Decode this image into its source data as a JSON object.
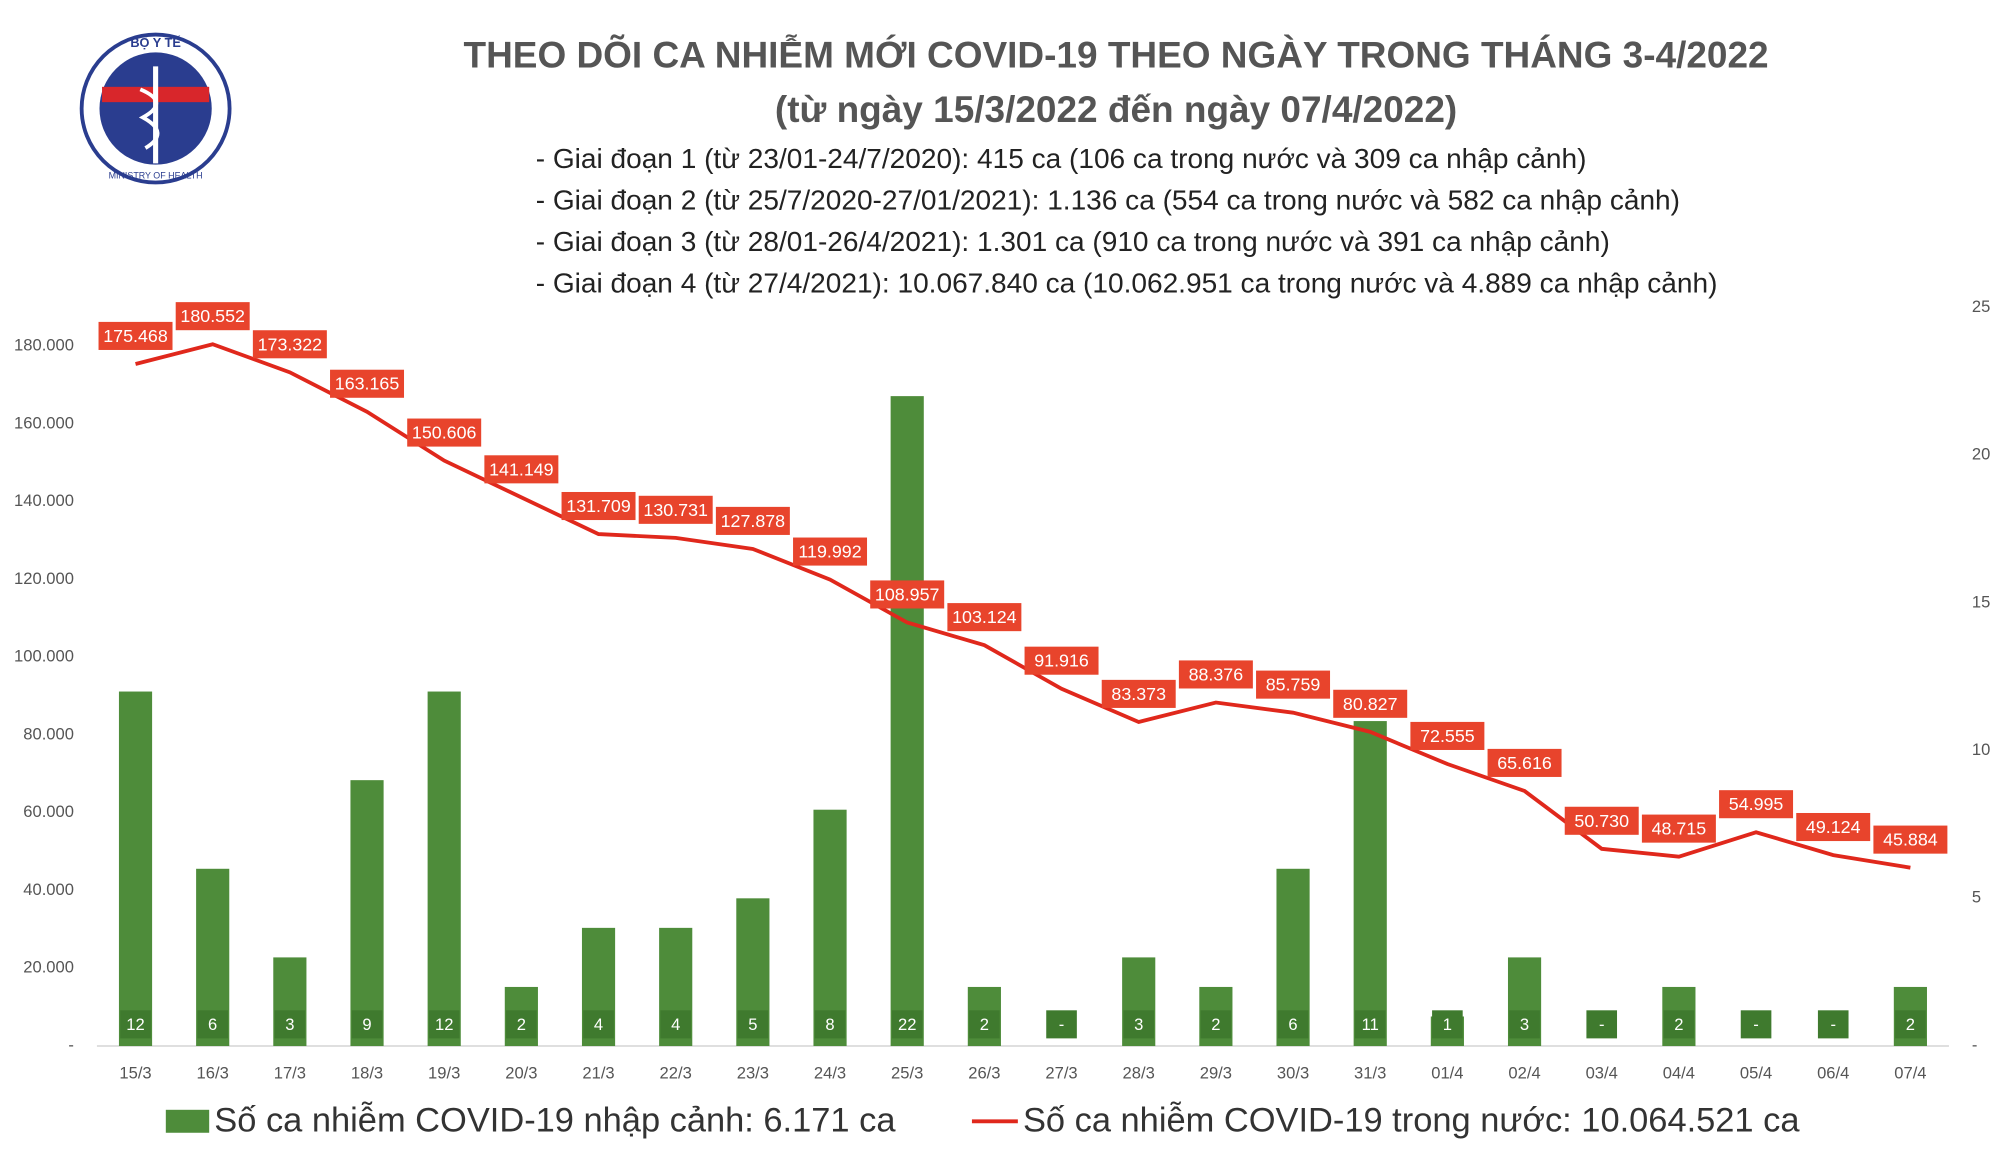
{
  "logo": {
    "top": "BỘ Y TẾ",
    "bottom": "MINISTRY OF HEALTH"
  },
  "chart_data": {
    "type": "combo",
    "title": "THEO DÕI CA NHIỄM MỚI COVID-19 THEO NGÀY TRONG THÁNG 3-4/2022",
    "subtitle": "(từ ngày 15/3/2022 đến ngày 07/4/2022)",
    "annotations": [
      "- Giai đoạn 1 (từ 23/01-24/7/2020): 415 ca (106 ca trong nước và 309 ca nhập cảnh)",
      "- Giai đoạn 2 (từ 25/7/2020-27/01/2021): 1.136 ca (554 ca trong nước và 582 ca nhập cảnh)",
      "- Giai đoạn 3 (từ 28/01-26/4/2021): 1.301 ca (910 ca trong nước và 391 ca nhập cảnh)",
      "- Giai đoạn 4 (từ 27/4/2021): 10.067.840 ca (10.062.951 ca trong nước và 4.889 ca nhập cảnh)"
    ],
    "categories": [
      "15/3",
      "16/3",
      "17/3",
      "18/3",
      "19/3",
      "20/3",
      "21/3",
      "22/3",
      "23/3",
      "24/3",
      "25/3",
      "26/3",
      "27/3",
      "28/3",
      "29/3",
      "30/3",
      "31/3",
      "01/4",
      "02/4",
      "03/4",
      "04/4",
      "05/4",
      "06/4",
      "07/4"
    ],
    "series": [
      {
        "name": "Số ca nhiễm COVID-19 nhập cảnh: 6.171 ca",
        "type": "bar",
        "axis": "y2",
        "color": "#4e8c3a",
        "values": [
          12,
          6,
          3,
          9,
          12,
          2,
          4,
          4,
          5,
          8,
          22,
          2,
          0,
          3,
          2,
          6,
          11,
          1,
          3,
          0,
          2,
          0,
          0,
          2
        ],
        "value_labels": [
          "12",
          "6",
          "3",
          "9",
          "12",
          "2",
          "4",
          "4",
          "5",
          "8",
          "22",
          "2",
          "-",
          "3",
          "2",
          "6",
          "11",
          "1",
          "3",
          "-",
          "2",
          "-",
          "-",
          "2"
        ]
      },
      {
        "name": "Số ca nhiễm COVID-19 trong nước: 10.064.521 ca",
        "type": "line",
        "color": "#e0281c",
        "values": [
          175468,
          180552,
          173322,
          163165,
          150606,
          141149,
          131709,
          130731,
          127878,
          119992,
          108957,
          103124,
          91916,
          83373,
          88376,
          85759,
          80827,
          72555,
          65616,
          50730,
          48715,
          54995,
          49124,
          45884
        ],
        "value_labels": [
          "175.468",
          "180.552",
          "173.322",
          "163.165",
          "150.606",
          "141.149",
          "131.709",
          "130.731",
          "127.878",
          "119.992",
          "108.957",
          "103.124",
          "91.916",
          "83.373",
          "88.376",
          "85.759",
          "80.827",
          "72.555",
          "65.616",
          "50.730",
          "48.715",
          "54.995",
          "49.124",
          "45.884"
        ]
      }
    ],
    "ylim": [
      0,
      190000
    ],
    "yticks": [
      {
        "value": 0,
        "label": "-"
      },
      {
        "value": 20000,
        "label": "20.000"
      },
      {
        "value": 40000,
        "label": "40.000"
      },
      {
        "value": 60000,
        "label": "60.000"
      },
      {
        "value": 80000,
        "label": "80.000"
      },
      {
        "value": 100000,
        "label": "100.000"
      },
      {
        "value": 120000,
        "label": "120.000"
      },
      {
        "value": 140000,
        "label": "140.000"
      },
      {
        "value": 160000,
        "label": "160.000"
      },
      {
        "value": 180000,
        "label": "180.000"
      }
    ],
    "y2lim": [
      0,
      25
    ],
    "y2ticks": [
      {
        "value": 0,
        "label": "-"
      },
      5,
      10,
      15,
      20,
      25
    ],
    "grid": false
  }
}
